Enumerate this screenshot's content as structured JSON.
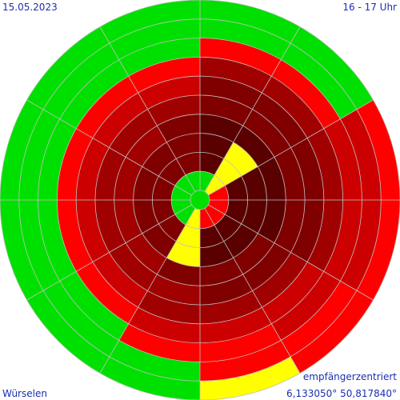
{
  "header": {
    "date": "15.05.2023",
    "time_range": "16 - 17 Uhr"
  },
  "footer": {
    "mode": "empfängerzentriert",
    "place": "Würselen",
    "coordinates": "6,133050° 50,817840°"
  },
  "colors": {
    "green": "#00e000",
    "yellow": "#ffff00",
    "red": "#ff0000",
    "dark_red_1": "#cc0000",
    "dark_red_2": "#a00000",
    "dark_red_3": "#800000",
    "dark_red_4": "#5a0000",
    "grid": "#c0c0c0"
  },
  "chart_data": {
    "type": "polar-rings",
    "sectors": 12,
    "rings": 10,
    "sector_start_bearing_deg": 0,
    "sector_direction": "clockwise",
    "ring_order": "inner-to-outer",
    "grid": true,
    "color_codes": [
      "green",
      "yellow",
      "red",
      "dark_red_1",
      "dark_red_2",
      "dark_red_3",
      "dark_red_4"
    ],
    "cells": [
      [
        "green",
        "dark_red_4",
        "dark_red_4",
        "dark_red_4",
        "dark_red_3",
        "dark_red_3",
        "dark_red_2",
        "red",
        "green",
        "green"
      ],
      [
        "yellow",
        "yellow",
        "yellow",
        "dark_red_4",
        "dark_red_3",
        "dark_red_3",
        "dark_red_2",
        "red",
        "green",
        "green"
      ],
      [
        "red",
        "dark_red_4",
        "dark_red_4",
        "dark_red_4",
        "dark_red_3",
        "dark_red_3",
        "dark_red_2",
        "dark_red_1",
        "dark_red_1",
        "red"
      ],
      [
        "red",
        "dark_red_4",
        "dark_red_4",
        "dark_red_4",
        "dark_red_3",
        "dark_red_3",
        "dark_red_2",
        "dark_red_1",
        "dark_red_1",
        "red"
      ],
      [
        "red",
        "dark_red_4",
        "dark_red_4",
        "dark_red_3",
        "dark_red_3",
        "dark_red_2",
        "dark_red_1",
        "dark_red_1",
        "red",
        "red"
      ],
      [
        "red",
        "dark_red_4",
        "dark_red_4",
        "dark_red_3",
        "dark_red_3",
        "dark_red_2",
        "dark_red_1",
        "red",
        "red",
        "yellow"
      ],
      [
        "yellow",
        "yellow",
        "yellow",
        "dark_red_3",
        "dark_red_2",
        "dark_red_2",
        "dark_red_1",
        "red",
        "green",
        "green"
      ],
      [
        "green",
        "dark_red_3",
        "dark_red_3",
        "dark_red_2",
        "dark_red_2",
        "dark_red_1",
        "red",
        "green",
        "green",
        "green"
      ],
      [
        "green",
        "dark_red_3",
        "dark_red_3",
        "dark_red_2",
        "dark_red_2",
        "dark_red_1",
        "red",
        "green",
        "green",
        "green"
      ],
      [
        "green",
        "dark_red_3",
        "dark_red_3",
        "dark_red_2",
        "dark_red_2",
        "dark_red_1",
        "red",
        "green",
        "green",
        "green"
      ],
      [
        "green",
        "dark_red_3",
        "dark_red_3",
        "dark_red_2",
        "dark_red_2",
        "dark_red_1",
        "red",
        "green",
        "green",
        "green"
      ],
      [
        "green",
        "dark_red_3",
        "dark_red_3",
        "dark_red_3",
        "dark_red_2",
        "dark_red_1",
        "red",
        "green",
        "green",
        "green"
      ]
    ]
  }
}
